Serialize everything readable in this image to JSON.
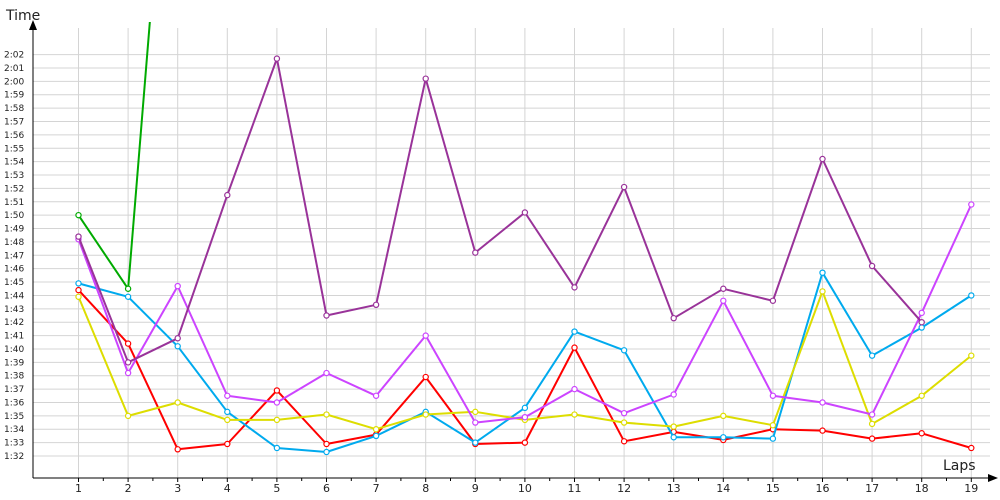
{
  "chart_data": {
    "type": "line",
    "xlabel": "Laps",
    "ylabel": "Time",
    "x": [
      1,
      2,
      3,
      4,
      5,
      6,
      7,
      8,
      9,
      10,
      11,
      12,
      13,
      14,
      15,
      16,
      17,
      18,
      19
    ],
    "y_tick_labels": [
      "1:32",
      "1:33",
      "1:34",
      "1:35",
      "1:36",
      "1:37",
      "1:38",
      "1:39",
      "1:40",
      "1:41",
      "1:42",
      "1:43",
      "1:44",
      "1:45",
      "1:46",
      "1:47",
      "1:48",
      "1:49",
      "1:50",
      "1:51",
      "1:52",
      "1:53",
      "1:54",
      "1:55",
      "1:56",
      "1:57",
      "1:58",
      "1:59",
      "2:00",
      "2:01",
      "2:02"
    ],
    "ylim_seconds": [
      91,
      123
    ],
    "grid": true,
    "series": [
      {
        "color": "#ff0000",
        "values": [
          104.4,
          100.4,
          92.5,
          92.9,
          96.9,
          92.9,
          93.6,
          97.9,
          92.9,
          93.0,
          100.1,
          93.1,
          93.8,
          93.2,
          94.0,
          93.9,
          93.3,
          93.7,
          92.6
        ]
      },
      {
        "color": "#00aaee",
        "values": [
          104.9,
          103.9,
          100.2,
          95.3,
          92.6,
          92.3,
          93.5,
          95.3,
          93.0,
          95.6,
          101.3,
          99.9,
          93.4,
          93.4,
          93.3,
          105.7,
          99.5,
          101.6,
          104.0
        ]
      },
      {
        "color": "#dddd00",
        "values": [
          103.9,
          95.0,
          96.0,
          94.7,
          94.7,
          95.1,
          94.0,
          95.1,
          95.3,
          94.7,
          95.1,
          94.5,
          94.2,
          95.0,
          94.3,
          104.3,
          94.4,
          96.5,
          99.5
        ]
      },
      {
        "color": "#cc44ff",
        "values": [
          108.2,
          98.2,
          104.7,
          96.5,
          96.0,
          98.2,
          96.5,
          101.0,
          94.5,
          94.9,
          97.0,
          95.2,
          96.6,
          103.6,
          96.5,
          96.0,
          95.1,
          102.7,
          110.8
        ]
      },
      {
        "color": "#993399",
        "values": [
          108.4,
          99.0,
          100.8,
          111.5,
          121.7,
          102.5,
          103.3,
          120.2,
          107.2,
          110.2,
          104.6,
          112.1,
          102.3,
          104.5,
          103.6,
          114.2,
          106.2,
          102.0,
          null
        ]
      },
      {
        "color": "#00aa00",
        "values": [
          110.0,
          104.5,
          150.0,
          150.0,
          null,
          null,
          null,
          null,
          null,
          null,
          null,
          null,
          null,
          null,
          null,
          null,
          null,
          null,
          null
        ]
      },
      {
        "color": "#22aa22",
        "values": [
          null,
          null,
          null,
          null,
          null,
          null,
          null,
          null,
          null,
          null,
          null,
          null,
          null,
          null,
          null,
          null,
          null,
          null,
          null
        ]
      },
      {
        "color": "#11cc11",
        "values": [
          null,
          null,
          null,
          null,
          null,
          null,
          null,
          null,
          null,
          null,
          null,
          null,
          null,
          null,
          null,
          null,
          null,
          null,
          null
        ]
      },
      {
        "color": "#3377bb",
        "values": [
          null,
          null,
          null,
          null,
          null,
          null,
          null,
          null,
          null,
          null,
          null,
          null,
          null,
          null,
          null,
          null,
          null,
          null,
          null
        ]
      },
      {
        "color": "#0000cc",
        "values": [
          null,
          null,
          null,
          null,
          null,
          null,
          null,
          null,
          null,
          null,
          null,
          null,
          null,
          null,
          null,
          null,
          null,
          null,
          null
        ]
      }
    ]
  }
}
